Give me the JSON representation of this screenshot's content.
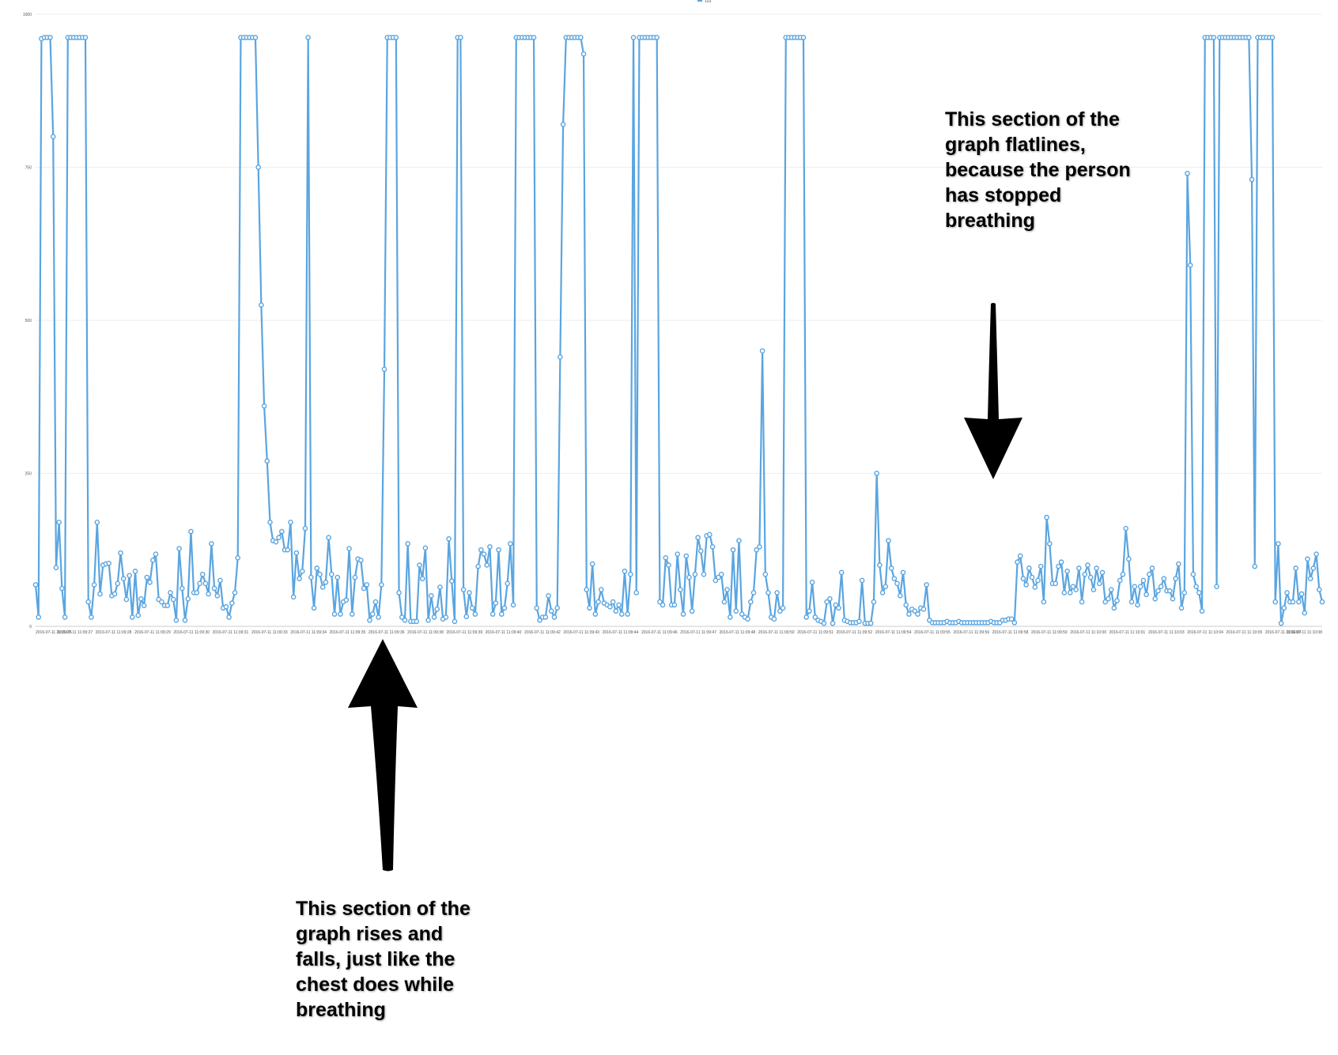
{
  "chart_data": {
    "type": "line",
    "legend": {
      "name": "103",
      "placement": "top-center"
    },
    "ylim": [
      0,
      1000
    ],
    "y_ticks": [
      "1000",
      "750",
      "500",
      "250",
      "0"
    ],
    "x_tick_labels": [
      "2016-07-11 11:09:26",
      "2016-07-11 11:09:27",
      "2016-07-11 11:09:28",
      "2016-07-11 11:09:29",
      "2016-07-11 11:09:30",
      "2016-07-11 11:09:31",
      "2016-07-11 11:09:33",
      "2016-07-11 11:09:34",
      "2016-07-11 11:09:35",
      "2016-07-11 11:09:36",
      "2016-07-11 11:09:38",
      "2016-07-11 11:09:39",
      "2016-07-11 11:09:40",
      "2016-07-11 11:09:42",
      "2016-07-11 11:09:43",
      "2016-07-11 11:09:44",
      "2016-07-11 11:09:46",
      "2016-07-11 11:09:47",
      "2016-07-11 11:09:48",
      "2016-07-11 11:09:50",
      "2016-07-11 11:09:51",
      "2016-07-11 11:09:52",
      "2016-07-11 11:09:54",
      "2016-07-11 11:09:55",
      "2016-07-11 11:09:56",
      "2016-07-11 11:09:58",
      "2016-07-11 11:09:59",
      "2016-07-11 11:10:00",
      "2016-07-11 11:10:01",
      "2016-07-11 11:10:03",
      "2016-07-11 11:10:04",
      "2016-07-11 11:10:05",
      "2016-07-11 11:10:07",
      "2016-07-11 11:10:08"
    ],
    "grid": true,
    "color": "#5aa5e0",
    "values": [
      68,
      15,
      960,
      962,
      962,
      962,
      800,
      96,
      170,
      62,
      15,
      962,
      962,
      962,
      962,
      962,
      962,
      962,
      40,
      15,
      68,
      170,
      53,
      100,
      102,
      103,
      50,
      53,
      70,
      120,
      78,
      44,
      83,
      15,
      90,
      18,
      45,
      34,
      80,
      72,
      108,
      118,
      44,
      40,
      34,
      34,
      55,
      44,
      10,
      127,
      62,
      10,
      45,
      155,
      55,
      55,
      70,
      85,
      70,
      53,
      135,
      62,
      50,
      75,
      30,
      32,
      15,
      38,
      55,
      112,
      962,
      962,
      962,
      962,
      962,
      962,
      750,
      525,
      360,
      270,
      170,
      140,
      138,
      145,
      155,
      125,
      125,
      170,
      48,
      120,
      78,
      90,
      160,
      962,
      80,
      30,
      95,
      85,
      64,
      72,
      145,
      85,
      20,
      80,
      20,
      40,
      43,
      127,
      20,
      80,
      110,
      108,
      62,
      68,
      10,
      20,
      40,
      15,
      68,
      420,
      962,
      962,
      962,
      962,
      55,
      15,
      10,
      135,
      8,
      8,
      8,
      100,
      78,
      128,
      10,
      50,
      15,
      28,
      64,
      12,
      15,
      143,
      74,
      8,
      962,
      962,
      60,
      16,
      55,
      30,
      20,
      98,
      125,
      118,
      100,
      130,
      20,
      38,
      125,
      20,
      30,
      70,
      135,
      35,
      962,
      962,
      962,
      962,
      962,
      962,
      962,
      30,
      10,
      15,
      15,
      50,
      25,
      15,
      30,
      440,
      820,
      962,
      962,
      962,
      962,
      962,
      962,
      935,
      60,
      30,
      102,
      20,
      40,
      60,
      38,
      35,
      32,
      40,
      25,
      35,
      20,
      90,
      20,
      85,
      962,
      55,
      962,
      962,
      962,
      962,
      962,
      962,
      962,
      40,
      35,
      112,
      100,
      35,
      35,
      118,
      60,
      20,
      115,
      80,
      25,
      85,
      145,
      123,
      85,
      148,
      150,
      130,
      75,
      80,
      85,
      40,
      60,
      15,
      125,
      25,
      140,
      20,
      15,
      12,
      40,
      55,
      125,
      130,
      450,
      85,
      55,
      15,
      12,
      55,
      25,
      30,
      962,
      962,
      962,
      962,
      962,
      962,
      962,
      15,
      25,
      72,
      15,
      10,
      8,
      5,
      40,
      45,
      5,
      35,
      30,
      88,
      10,
      8,
      6,
      6,
      6,
      8,
      75,
      5,
      5,
      5,
      40,
      250,
      100,
      55,
      65,
      140,
      95,
      78,
      70,
      50,
      88,
      35,
      20,
      28,
      25,
      20,
      30,
      28,
      68,
      10,
      6,
      6,
      6,
      6,
      6,
      8,
      6,
      6,
      6,
      8,
      6,
      6,
      6,
      6,
      6,
      6,
      6,
      6,
      6,
      6,
      8,
      6,
      6,
      6,
      10,
      10,
      12,
      12,
      6,
      105,
      115,
      78,
      68,
      95,
      80,
      64,
      75,
      98,
      40,
      178,
      135,
      70,
      70,
      98,
      105,
      55,
      90,
      55,
      65,
      60,
      95,
      40,
      85,
      100,
      80,
      60,
      95,
      70,
      88,
      40,
      45,
      60,
      30,
      42,
      75,
      85,
      160,
      110,
      40,
      65,
      35,
      65,
      75,
      52,
      85,
      95,
      45,
      58,
      65,
      78,
      58,
      58,
      45,
      78,
      102,
      30,
      55,
      740,
      590,
      85,
      65,
      55,
      25,
      962,
      962,
      962,
      962,
      65,
      962,
      962,
      962,
      962,
      962,
      962,
      962,
      962,
      962,
      962,
      962,
      730,
      98,
      962,
      962,
      962,
      962,
      962,
      962,
      40,
      135,
      5,
      30,
      55,
      40,
      40,
      95,
      40,
      53,
      22,
      110,
      78,
      95,
      118,
      60,
      40
    ]
  },
  "annotations": {
    "flatline": "This section of the\ngraph flatlines,\nbecause the person\nhas stopped\nbreathing",
    "breathing": "This section of the\ngraph rises and\nfalls, just like the\nchest does while\nbreathing"
  },
  "colors": {
    "series": "#5aa5e0",
    "arrow": "#000000",
    "grid": "#eeeeee",
    "axis": "#cccccc"
  }
}
